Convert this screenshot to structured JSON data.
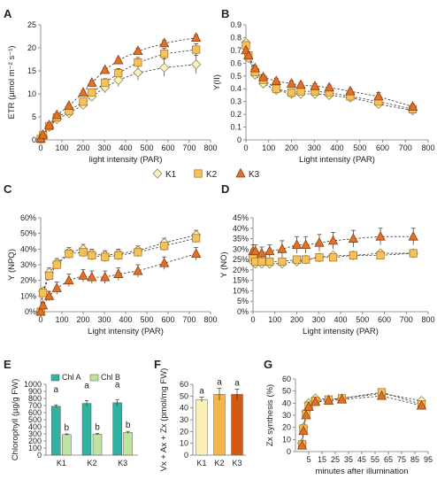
{
  "colors": {
    "K1": "#fbf7c6",
    "K2": "#f8c25a",
    "K3": "#e07126",
    "K1_stroke": "#8a8350",
    "K2_stroke": "#a77a26",
    "K3_stroke": "#8f3f10",
    "chl_a": "#2fb3a0",
    "chl_b": "#bfe3a0",
    "f_k1": "#fbf0b8",
    "f_k2": "#f4b54a",
    "f_k3": "#d45a12"
  },
  "legend_series": [
    "K1",
    "K2",
    "K3"
  ],
  "chart_data": [
    {
      "panel": "A",
      "type": "line",
      "xlabel": "light intensity (PAR)",
      "ylabel": "ETR (µmol m⁻² s⁻¹)",
      "xlim": [
        0,
        800
      ],
      "ylim": [
        0,
        25
      ],
      "xticks": [
        0,
        100,
        200,
        300,
        400,
        500,
        600,
        700,
        800
      ],
      "yticks": [
        0,
        5,
        10,
        15,
        20,
        25
      ],
      "x": [
        0,
        11,
        40,
        76,
        133,
        200,
        241,
        303,
        366,
        458,
        582,
        732
      ],
      "series": [
        {
          "name": "K1",
          "values": [
            0.2,
            0.8,
            2.8,
            4.5,
            5.8,
            7.6,
            9.4,
            11.4,
            13.0,
            14.6,
            15.7,
            16.4
          ],
          "err": [
            0.2,
            0.3,
            0.4,
            0.5,
            0.6,
            0.8,
            1.0,
            1.2,
            1.4,
            1.6,
            1.9,
            2.0
          ]
        },
        {
          "name": "K2",
          "values": [
            0.2,
            1.0,
            3.0,
            4.9,
            6.3,
            8.3,
            10.3,
            12.4,
            14.5,
            16.8,
            18.7,
            19.6
          ],
          "err": [
            0.2,
            0.3,
            0.4,
            0.5,
            0.6,
            0.7,
            0.8,
            0.9,
            1.0,
            1.1,
            1.2,
            1.3
          ]
        },
        {
          "name": "K3",
          "values": [
            0.3,
            1.1,
            3.2,
            5.4,
            7.4,
            10.3,
            12.4,
            15.2,
            17.3,
            19.3,
            21.0,
            22.2
          ],
          "err": [
            0.2,
            0.2,
            0.3,
            0.4,
            0.4,
            0.5,
            0.5,
            0.5,
            0.5,
            0.6,
            0.6,
            0.6
          ]
        }
      ]
    },
    {
      "panel": "B",
      "type": "line",
      "xlabel": "Light intensity (PAR)",
      "ylabel": "Y(II)",
      "xlim": [
        0,
        800
      ],
      "ylim": [
        0,
        0.9
      ],
      "xticks": [
        0,
        100,
        200,
        300,
        400,
        500,
        600,
        700,
        800
      ],
      "yticks": [
        0,
        0.1,
        0.2,
        0.3,
        0.4,
        0.5,
        0.6,
        0.7,
        0.8,
        0.9
      ],
      "x": [
        0,
        11,
        40,
        76,
        133,
        200,
        241,
        303,
        366,
        458,
        582,
        732
      ],
      "series": [
        {
          "name": "K1",
          "values": [
            0.76,
            0.64,
            0.51,
            0.44,
            0.39,
            0.36,
            0.36,
            0.36,
            0.35,
            0.33,
            0.28,
            0.23
          ],
          "err": [
            0.02,
            0.02,
            0.02,
            0.02,
            0.02,
            0.02,
            0.02,
            0.02,
            0.02,
            0.02,
            0.02,
            0.02
          ]
        },
        {
          "name": "K2",
          "values": [
            0.74,
            0.66,
            0.53,
            0.47,
            0.4,
            0.37,
            0.38,
            0.38,
            0.37,
            0.34,
            0.3,
            0.24
          ],
          "err": [
            0.02,
            0.02,
            0.02,
            0.02,
            0.02,
            0.02,
            0.02,
            0.02,
            0.02,
            0.02,
            0.02,
            0.02
          ]
        },
        {
          "name": "K3",
          "values": [
            0.7,
            0.66,
            0.56,
            0.49,
            0.46,
            0.44,
            0.43,
            0.42,
            0.41,
            0.38,
            0.34,
            0.26
          ],
          "err": [
            0.02,
            0.02,
            0.02,
            0.02,
            0.02,
            0.02,
            0.02,
            0.02,
            0.02,
            0.02,
            0.03,
            0.02
          ]
        }
      ]
    },
    {
      "panel": "C",
      "type": "line",
      "xlabel": "Light intensity (PAR)",
      "ylabel": "Y (NPQ)",
      "xlim": [
        0,
        800
      ],
      "ylim": [
        0,
        0.6
      ],
      "xticks": [
        0,
        100,
        200,
        300,
        400,
        500,
        600,
        700,
        800
      ],
      "yticks": [
        0,
        0.1,
        0.2,
        0.3,
        0.4,
        0.5,
        0.6
      ],
      "ytick_labels": [
        "0%",
        "10%",
        "20%",
        "30%",
        "40%",
        "50%",
        "60%"
      ],
      "x": [
        0,
        11,
        40,
        76,
        133,
        200,
        241,
        303,
        366,
        458,
        582,
        732
      ],
      "series": [
        {
          "name": "K1",
          "values": [
            0.0,
            0.13,
            0.25,
            0.31,
            0.38,
            0.4,
            0.37,
            0.36,
            0.37,
            0.39,
            0.44,
            0.49
          ],
          "err": [
            0.01,
            0.02,
            0.03,
            0.03,
            0.03,
            0.03,
            0.03,
            0.03,
            0.03,
            0.03,
            0.03,
            0.03
          ]
        },
        {
          "name": "K2",
          "values": [
            0.0,
            0.12,
            0.23,
            0.3,
            0.37,
            0.38,
            0.36,
            0.35,
            0.36,
            0.38,
            0.42,
            0.47
          ],
          "err": [
            0.01,
            0.02,
            0.03,
            0.03,
            0.03,
            0.03,
            0.03,
            0.03,
            0.03,
            0.03,
            0.03,
            0.03
          ]
        },
        {
          "name": "K3",
          "values": [
            0.0,
            0.04,
            0.1,
            0.15,
            0.2,
            0.23,
            0.22,
            0.22,
            0.24,
            0.26,
            0.31,
            0.37
          ],
          "err": [
            0.01,
            0.02,
            0.03,
            0.04,
            0.04,
            0.04,
            0.04,
            0.04,
            0.04,
            0.04,
            0.04,
            0.04
          ]
        }
      ]
    },
    {
      "panel": "D",
      "type": "line",
      "xlabel": "Light intensity (PAR)",
      "ylabel": "Y (NO)",
      "xlim": [
        0,
        800
      ],
      "ylim": [
        0,
        0.45
      ],
      "xticks": [
        0,
        100,
        200,
        300,
        400,
        500,
        600,
        700,
        800
      ],
      "yticks": [
        0,
        0.05,
        0.1,
        0.15,
        0.2,
        0.25,
        0.3,
        0.35,
        0.4,
        0.45
      ],
      "ytick_labels": [
        "0%",
        "5%",
        "10%",
        "15%",
        "20%",
        "25%",
        "30%",
        "35%",
        "40%",
        "45%"
      ],
      "x": [
        0,
        11,
        40,
        76,
        133,
        200,
        241,
        303,
        366,
        458,
        582,
        732
      ],
      "series": [
        {
          "name": "K1",
          "values": [
            0.24,
            0.23,
            0.23,
            0.23,
            0.23,
            0.24,
            0.25,
            0.26,
            0.27,
            0.27,
            0.28,
            0.28
          ],
          "err": [
            0.02,
            0.02,
            0.01,
            0.01,
            0.01,
            0.01,
            0.01,
            0.01,
            0.01,
            0.01,
            0.01,
            0.01
          ]
        },
        {
          "name": "K2",
          "values": [
            0.26,
            0.24,
            0.24,
            0.24,
            0.24,
            0.25,
            0.25,
            0.26,
            0.26,
            0.27,
            0.27,
            0.28
          ],
          "err": [
            0.02,
            0.02,
            0.01,
            0.01,
            0.01,
            0.01,
            0.01,
            0.01,
            0.01,
            0.01,
            0.01,
            0.01
          ]
        },
        {
          "name": "K3",
          "values": [
            0.29,
            0.29,
            0.28,
            0.29,
            0.3,
            0.32,
            0.32,
            0.33,
            0.34,
            0.35,
            0.36,
            0.36
          ],
          "err": [
            0.03,
            0.03,
            0.03,
            0.03,
            0.04,
            0.04,
            0.04,
            0.04,
            0.04,
            0.04,
            0.04,
            0.04
          ]
        }
      ]
    },
    {
      "panel": "E",
      "type": "bar",
      "ylabel": "Chlorophyll (µg/g FW)",
      "categories": [
        "K1",
        "K2",
        "K3"
      ],
      "ylim": [
        0,
        1000
      ],
      "yticks": [
        0,
        100,
        200,
        300,
        400,
        500,
        600,
        700,
        800,
        900,
        1000
      ],
      "legend": [
        "Chl A",
        "Chl B"
      ],
      "series": [
        {
          "name": "Chl A",
          "values": [
            690,
            730,
            740
          ],
          "err": [
            20,
            40,
            40
          ],
          "sig": [
            "a",
            "a",
            "a"
          ]
        },
        {
          "name": "Chl B",
          "values": [
            290,
            295,
            320
          ],
          "err": [
            10,
            10,
            15
          ],
          "sig": [
            "b",
            "b",
            "b"
          ]
        }
      ]
    },
    {
      "panel": "F",
      "type": "bar",
      "ylabel": "Vx + Ax + Zx (pmol/mg FW)",
      "categories": [
        "K1",
        "K2",
        "K3"
      ],
      "ylim": [
        0,
        60
      ],
      "yticks": [
        0,
        10,
        20,
        30,
        40,
        50,
        60
      ],
      "values": [
        47,
        51.5,
        51.5
      ],
      "err": [
        2,
        5,
        4.5
      ],
      "sig": [
        "a",
        "a",
        "a"
      ]
    },
    {
      "panel": "G",
      "type": "line",
      "xlabel": "minutes after illumination",
      "ylabel": "Zx synthesis (%)",
      "xlim": [
        -5,
        95
      ],
      "ylim": [
        0,
        60
      ],
      "xticks": [
        5,
        15,
        25,
        35,
        45,
        55,
        65,
        75,
        85,
        95
      ],
      "yticks": [
        0,
        10,
        20,
        30,
        40,
        50,
        60
      ],
      "x": [
        0,
        1,
        3,
        5,
        10,
        20,
        30,
        60,
        90
      ],
      "series": [
        {
          "name": "K1",
          "values": [
            7,
            20,
            33,
            40,
            44,
            43,
            44,
            48,
            42
          ],
          "err": [
            1,
            2,
            2,
            2,
            2,
            2,
            2,
            2,
            2
          ]
        },
        {
          "name": "K2",
          "values": [
            6,
            19,
            31,
            38,
            42,
            43,
            44,
            49,
            39
          ],
          "err": [
            1,
            2,
            2,
            2,
            2,
            2,
            2,
            2,
            2
          ]
        },
        {
          "name": "K3",
          "values": [
            5,
            17,
            30,
            37,
            41,
            42,
            43,
            46,
            38
          ],
          "err": [
            1,
            2,
            2,
            2,
            2,
            2,
            2,
            2,
            2
          ]
        }
      ]
    }
  ]
}
